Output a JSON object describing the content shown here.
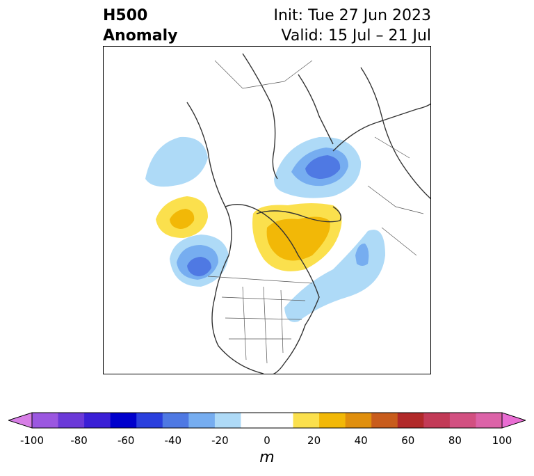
{
  "header": {
    "title_line1": "H500",
    "title_line2": "Anomaly",
    "init": "Init: Tue 27 Jun 2023",
    "valid": "Valid: 15 Jul – 21 Jul"
  },
  "map": {
    "projection": "north-polar-stereographic",
    "region": "North America / Arctic",
    "layers": [
      "h500-anomaly-fill",
      "coastlines",
      "country-borders",
      "state-borders"
    ]
  },
  "colorbar": {
    "unit": "m",
    "min": -100,
    "max": 100,
    "step": 10,
    "tick_labels": [
      "-100",
      "-80",
      "-60",
      "-40",
      "-20",
      "0",
      "20",
      "40",
      "60",
      "80",
      "100"
    ],
    "colors": [
      "#d77ee6",
      "#9b57e0",
      "#6b39d8",
      "#3a1fd6",
      "#0000cc",
      "#2a3fdd",
      "#4f79e3",
      "#76adf0",
      "#aedaf7",
      "#ffffff",
      "#ffffff",
      "#fbe04d",
      "#f2b807",
      "#e08f0d",
      "#c85c1c",
      "#b12929",
      "#c23a57",
      "#d25081",
      "#dc63a8",
      "#e96dd3"
    ],
    "extend": "both"
  }
}
